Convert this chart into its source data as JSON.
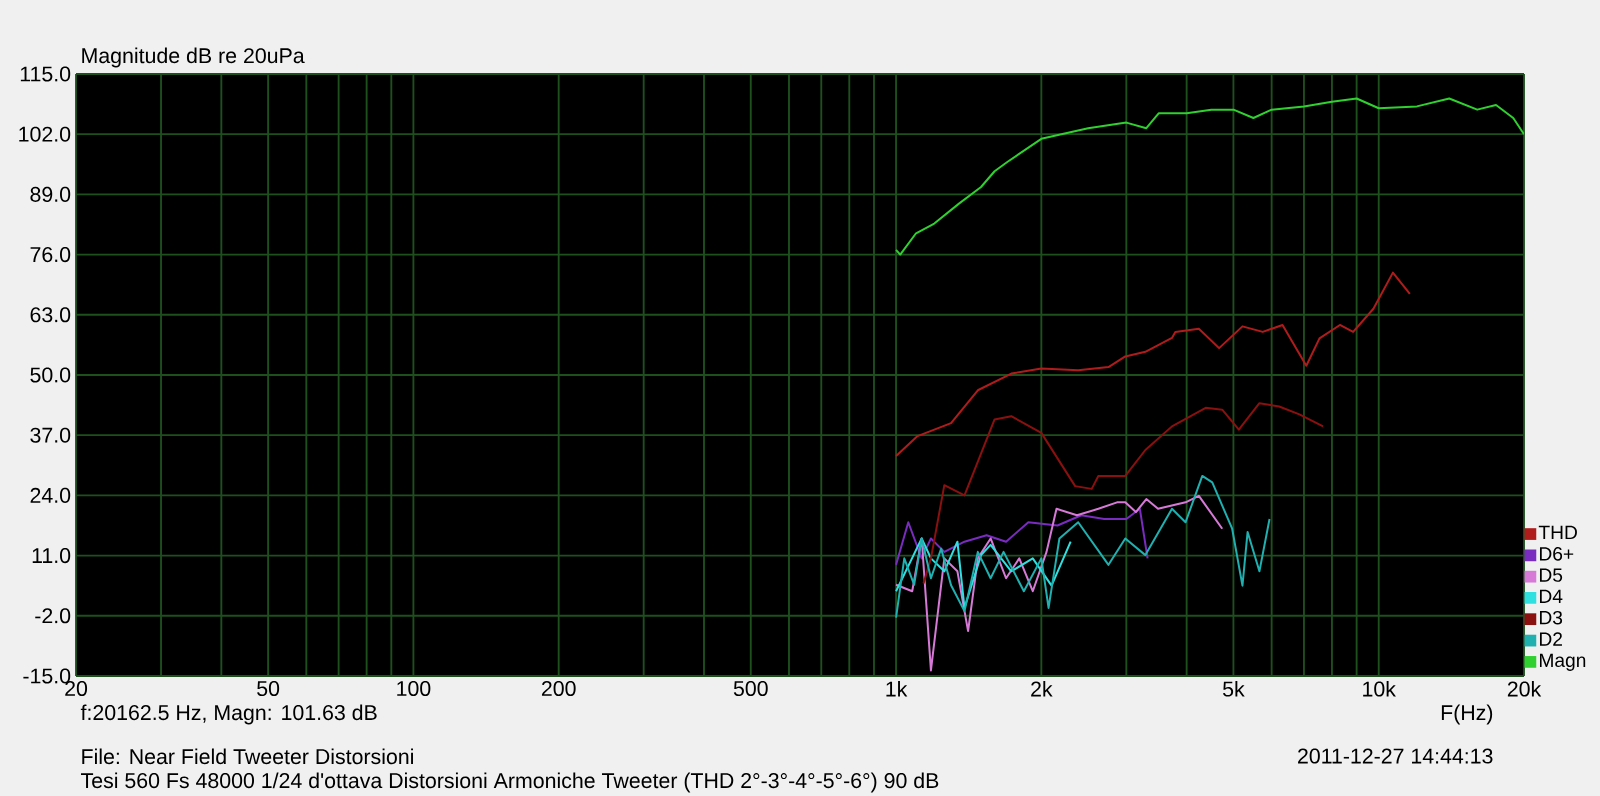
{
  "chart_data": {
    "type": "line",
    "ylabel": "Magnitude dB re 20uPa",
    "xlabel": "F(Hz)",
    "log": "x",
    "grid": true,
    "legend": "bottom right",
    "marker": "none",
    "line_style": "solid",
    "xlim": [
      20,
      20000
    ],
    "ylim": [
      -15,
      115
    ],
    "xticks": [
      20,
      {
        "value": 30,
        "label": null
      },
      {
        "value": 40,
        "label": null
      },
      50,
      {
        "value": 60,
        "label": null
      },
      {
        "value": 70,
        "label": null
      },
      {
        "value": 80,
        "label": null
      },
      {
        "value": 90,
        "label": null
      },
      100,
      200,
      {
        "value": 300,
        "label": null
      },
      {
        "value": 400,
        "label": null
      },
      500,
      {
        "value": 600,
        "label": null
      },
      {
        "value": 700,
        "label": null
      },
      {
        "value": 800,
        "label": null
      },
      {
        "value": 900,
        "label": null
      },
      {
        "value": 1000,
        "label": "1k"
      },
      {
        "value": 2000,
        "label": "2k"
      },
      {
        "value": 3000,
        "label": null
      },
      {
        "value": 4000,
        "label": null
      },
      {
        "value": 5000,
        "label": "5k"
      },
      {
        "value": 6000,
        "label": null
      },
      {
        "value": 7000,
        "label": null
      },
      {
        "value": 8000,
        "label": null
      },
      {
        "value": 9000,
        "label": null
      },
      {
        "value": 10000,
        "label": "10k"
      },
      {
        "value": 20000,
        "label": "20k"
      }
    ],
    "yticks": [
      {
        "value": -15,
        "label": "-15.0"
      },
      {
        "value": -2,
        "label": "-2.0"
      },
      {
        "value": 11,
        "label": "11.0"
      },
      {
        "value": 24,
        "label": "24.0"
      },
      {
        "value": 37,
        "label": "37.0"
      },
      {
        "value": 50,
        "label": "50.0"
      },
      {
        "value": 63,
        "label": "63.0"
      },
      {
        "value": 76,
        "label": "76.0"
      },
      {
        "value": 89,
        "label": "89.0"
      },
      {
        "value": 102,
        "label": "102.0"
      },
      {
        "value": 115,
        "label": "115.0"
      }
    ],
    "annotations": [
      "f:20162.5 Hz, Magn: 101.63 dB",
      "File: Near Field Tweeter Distorsioni",
      "Tesi 560 Fs 48000 1/24 d'ottava Distorsioni Armoniche Tweeter (THD 2°-3°-4°-5°-6°) 90 dB",
      "2011-12-27 14:44:13"
    ],
    "series": [
      {
        "name": "THD",
        "color": "#b01c1c",
        "x": [
          1000,
          1108,
          1300,
          1477,
          1733,
          2000,
          2384,
          2755,
          2985,
          3285,
          3730,
          3790,
          4240,
          4670,
          5220,
          5750,
          6320,
          7080,
          7540,
          8310,
          8850,
          9750,
          10700,
          11600
        ],
        "values": [
          32.5,
          36.8,
          39.6,
          46.7,
          50.3,
          51.4,
          51,
          51.7,
          54,
          55,
          58,
          59.3,
          60,
          55.8,
          60.5,
          59.3,
          60.8,
          52,
          57.9,
          60.8,
          59.3,
          64.3,
          72.1,
          67.5
        ]
      },
      {
        "name": "D6+",
        "color": "#7a2bc0",
        "x": [
          1000,
          1060,
          1130,
          1181,
          1259,
          1386,
          1540,
          1690,
          1880,
          2160,
          2420,
          2700,
          3000,
          3200,
          3320
        ],
        "values": [
          9,
          18.2,
          10.4,
          14.7,
          11.8,
          14,
          15.4,
          14,
          18.2,
          17.5,
          19.7,
          18.9,
          18.9,
          21.1,
          10.4
        ]
      },
      {
        "name": "D5",
        "color": "#d77ad7",
        "x": [
          1000,
          1080,
          1130,
          1181,
          1259,
          1340,
          1410,
          1477,
          1570,
          1690,
          1800,
          1920,
          2050,
          2150,
          2370,
          2625,
          2870,
          2985,
          3140,
          3300,
          3490,
          3980,
          4240,
          4740
        ],
        "values": [
          4.7,
          3.3,
          14.7,
          -13.8,
          10.4,
          7.6,
          -5.3,
          10.4,
          14.7,
          6.1,
          10.4,
          3.3,
          11.8,
          21.1,
          19.7,
          21.1,
          22.5,
          22.5,
          20.4,
          23.2,
          21.1,
          22.5,
          23.9,
          16.8
        ]
      },
      {
        "name": "D4",
        "color": "#30e0e0",
        "x": [
          1000,
          1130,
          1181,
          1259,
          1340,
          1386,
          1500,
          1570,
          1733,
          1920,
          2100,
          2300
        ],
        "values": [
          3.3,
          14.7,
          10.4,
          7.6,
          14,
          -0.3,
          11.1,
          13.3,
          7.6,
          10.4,
          4.5,
          14
        ]
      },
      {
        "name": "D3",
        "color": "#8b1010",
        "x": [
          1140,
          1181,
          1259,
          1386,
          1600,
          1733,
          2000,
          2350,
          2543,
          2625,
          2985,
          3285,
          3730,
          4380,
          4740,
          5130,
          5660,
          6220,
          6850,
          7670
        ],
        "values": [
          5,
          10.4,
          26.2,
          24,
          40.4,
          41.1,
          37.5,
          26,
          25.4,
          28.2,
          28.2,
          33.8,
          38.9,
          42.9,
          42.5,
          38.2,
          43.9,
          43.2,
          41.5,
          38.9
        ]
      },
      {
        "name": "D2",
        "color": "#20b0b0",
        "x": [
          1000,
          1040,
          1090,
          1130,
          1181,
          1240,
          1300,
          1386,
          1477,
          1570,
          1670,
          1840,
          2000,
          2070,
          2180,
          2384,
          2755,
          2985,
          3285,
          3730,
          3980,
          4310,
          4520,
          4970,
          5220,
          5350,
          5660,
          5940
        ],
        "values": [
          -2.4,
          10.4,
          4.7,
          14.7,
          6.1,
          12.5,
          4.6,
          -1,
          11.8,
          6.1,
          11.8,
          3.3,
          10.4,
          -0.3,
          14.7,
          18.2,
          9,
          14.7,
          11.1,
          21.1,
          18.2,
          28.2,
          26.8,
          16.8,
          4.5,
          16.1,
          7.6,
          18.9
        ]
      },
      {
        "name": "Magn",
        "color": "#30d030",
        "x": [
          1000,
          1020,
          1100,
          1200,
          1350,
          1500,
          1600,
          1700,
          2000,
          2500,
          3000,
          3300,
          3500,
          4000,
          4500,
          5000,
          5500,
          6000,
          7000,
          8000,
          9000,
          10000,
          12000,
          14000,
          16000,
          17500,
          19000,
          20000
        ],
        "values": [
          77,
          76,
          80.6,
          82.7,
          87,
          90.6,
          94,
          96,
          101,
          103.3,
          104.5,
          103.3,
          106.5,
          106.5,
          107.3,
          107.3,
          105.5,
          107.3,
          108,
          109,
          109.7,
          107.6,
          108,
          109.7,
          107.3,
          108.3,
          105.5,
          102
        ]
      }
    ]
  }
}
